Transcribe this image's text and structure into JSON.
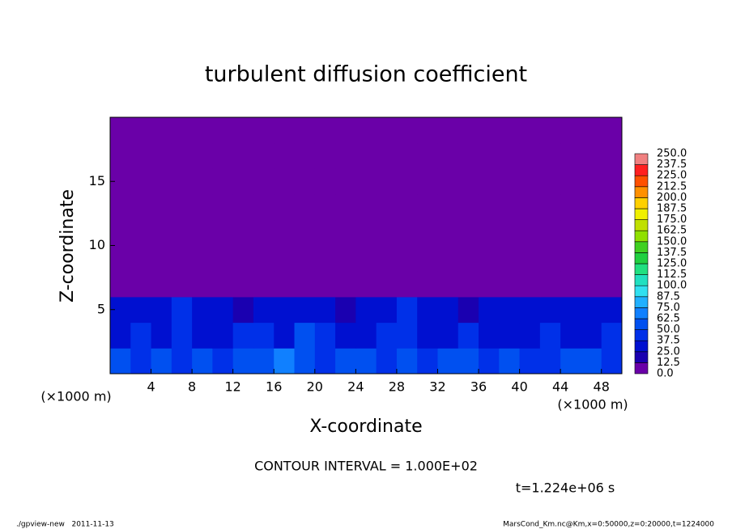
{
  "chart_data": {
    "type": "heatmap",
    "title": "turbulent diffusion coefficient",
    "x_label": "X-coordinate",
    "y_label": "Z-coordinate",
    "x_unit": "(×1000 m)",
    "y_unit": "(×1000 m)",
    "contour_note": "CONTOUR INTERVAL = 1.000E+02",
    "time_note": "t=1.224e+06 s",
    "footer_left": "./gpview-new   2011-11-13",
    "footer_right": "MarsCond_Km.nc@Km,x=0:50000,z=0:20000,t=1224000",
    "xlim": [
      0,
      50
    ],
    "ylim": [
      0,
      20
    ],
    "xticks": [
      4,
      8,
      12,
      16,
      20,
      24,
      28,
      32,
      36,
      40,
      44,
      48
    ],
    "yticks": [
      5,
      10,
      15
    ],
    "xbins": [
      0,
      2,
      4,
      6,
      8,
      10,
      12,
      14,
      16,
      18,
      20,
      22,
      24,
      26,
      28,
      30,
      32,
      34,
      36,
      38,
      40,
      42,
      44,
      46,
      48,
      50
    ],
    "ybins": [
      0,
      2,
      4,
      6,
      8,
      10,
      12,
      14,
      16,
      18,
      20
    ],
    "z": [
      [
        50,
        45,
        55,
        40,
        60,
        45,
        50,
        55,
        65,
        50,
        45,
        55,
        60,
        45,
        50,
        40,
        55,
        60,
        45,
        50,
        40,
        45,
        50,
        55,
        45
      ],
      [
        35,
        40,
        30,
        45,
        35,
        30,
        40,
        45,
        35,
        50,
        40,
        35,
        30,
        45,
        40,
        35,
        30,
        40,
        35,
        30,
        35,
        40,
        35,
        30,
        40
      ],
      [
        25,
        30,
        35,
        40,
        35,
        25,
        20,
        30,
        35,
        30,
        25,
        20,
        30,
        35,
        40,
        30,
        25,
        20,
        25,
        30,
        35,
        30,
        25,
        30,
        25
      ],
      [
        0,
        0,
        0,
        12,
        0,
        0,
        0,
        0,
        0,
        0,
        0,
        0,
        0,
        0,
        0,
        0,
        0,
        0,
        0,
        0,
        0,
        0,
        0,
        0,
        0
      ],
      [
        0,
        0,
        0,
        0,
        0,
        0,
        0,
        0,
        0,
        0,
        0,
        0,
        0,
        0,
        0,
        0,
        0,
        0,
        0,
        0,
        0,
        0,
        0,
        0,
        0
      ],
      [
        0,
        0,
        0,
        0,
        0,
        0,
        0,
        0,
        0,
        0,
        0,
        0,
        0,
        0,
        0,
        0,
        0,
        0,
        0,
        0,
        0,
        0,
        0,
        0,
        0
      ],
      [
        0,
        0,
        0,
        0,
        0,
        0,
        0,
        0,
        0,
        0,
        0,
        0,
        0,
        0,
        0,
        0,
        0,
        0,
        0,
        0,
        0,
        0,
        0,
        0,
        0
      ],
      [
        0,
        0,
        0,
        0,
        0,
        0,
        0,
        0,
        0,
        0,
        0,
        0,
        0,
        0,
        0,
        0,
        0,
        0,
        0,
        0,
        0,
        0,
        0,
        0,
        0
      ],
      [
        0,
        0,
        0,
        0,
        0,
        0,
        0,
        0,
        0,
        0,
        0,
        0,
        0,
        0,
        0,
        0,
        0,
        0,
        0,
        0,
        0,
        0,
        0,
        0,
        0
      ],
      [
        0,
        0,
        0,
        0,
        0,
        0,
        0,
        0,
        0,
        0,
        0,
        0,
        0,
        0,
        0,
        0,
        0,
        0,
        0,
        0,
        0,
        0,
        0,
        0,
        0
      ]
    ],
    "colorbar": {
      "levels": [
        {
          "value": 0,
          "label": "0.0"
        },
        {
          "value": 12.5,
          "label": "12.5"
        },
        {
          "value": 25,
          "label": "25.0"
        },
        {
          "value": 37.5,
          "label": "37.5"
        },
        {
          "value": 50,
          "label": "50.0"
        },
        {
          "value": 62.5,
          "label": "62.5"
        },
        {
          "value": 75,
          "label": "75.0"
        },
        {
          "value": 87.5,
          "label": "87.5"
        },
        {
          "value": 100,
          "label": "100.0"
        },
        {
          "value": 112.5,
          "label": "112.5"
        },
        {
          "value": 125,
          "label": "125.0"
        },
        {
          "value": 137.5,
          "label": "137.5"
        },
        {
          "value": 150,
          "label": "150.0"
        },
        {
          "value": 162.5,
          "label": "162.5"
        },
        {
          "value": 175,
          "label": "175.0"
        },
        {
          "value": 187.5,
          "label": "187.5"
        },
        {
          "value": 200,
          "label": "200.0"
        },
        {
          "value": 212.5,
          "label": "212.5"
        },
        {
          "value": 225,
          "label": "225.0"
        },
        {
          "value": 237.5,
          "label": "237.5"
        },
        {
          "value": 250,
          "label": "250.0"
        }
      ],
      "colors": [
        "#6a00a8",
        "#1a00b0",
        "#0010d0",
        "#0030e8",
        "#0050f0",
        "#1080ff",
        "#20b0ff",
        "#30e0f0",
        "#20e0c0",
        "#20e080",
        "#20d040",
        "#40d020",
        "#90e000",
        "#c0e000",
        "#f0f000",
        "#ffd000",
        "#ff9000",
        "#ff5000",
        "#ff2020",
        "#f08080"
      ]
    }
  }
}
